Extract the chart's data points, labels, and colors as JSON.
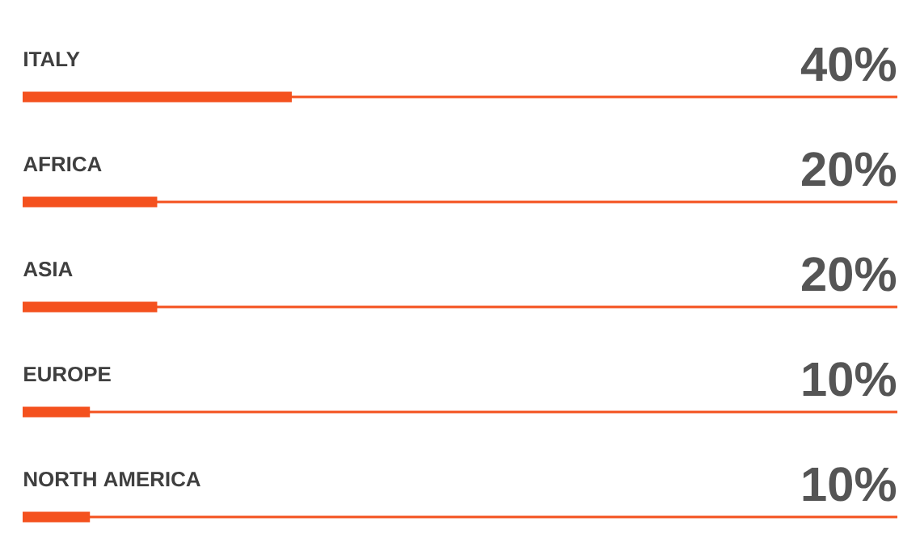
{
  "chart_data": {
    "type": "bar",
    "orientation": "horizontal",
    "categories": [
      "ITALY",
      "AFRICA",
      "ASIA",
      "EUROPE",
      "NORTH AMERICA"
    ],
    "values": [
      40,
      20,
      20,
      10,
      10
    ],
    "value_labels": [
      "40%",
      "20%",
      "20%",
      "10%",
      "10%"
    ],
    "color": "#f4511e",
    "xlim": [
      0,
      130
    ],
    "grid": "y"
  }
}
